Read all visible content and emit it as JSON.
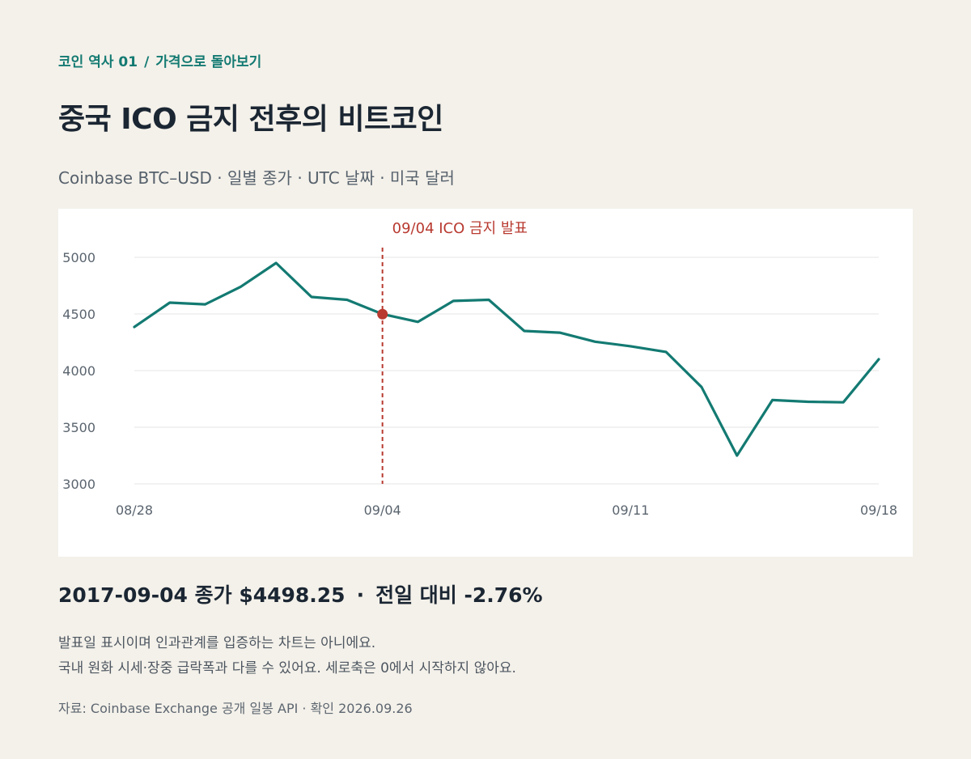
{
  "header": {
    "eyebrow_series": "코인 역사 01",
    "eyebrow_sep": "/",
    "eyebrow_topic": "가격으로 돌아보기",
    "title": "중국 ICO 금지 전후의 비트코인",
    "subtitle": "Coinbase BTC–USD · 일별 종가 · UTC 날짜 · 미국 달러"
  },
  "colors": {
    "accent": "#137a72",
    "line": "#137a72",
    "annotation": "#b83a30",
    "grid": "#e4e4e4",
    "background": "#f4f1ea",
    "card": "#ffffff"
  },
  "chart_data": {
    "type": "line",
    "title": "",
    "xlabel": "",
    "ylabel": "",
    "ylim": [
      3000,
      5000
    ],
    "yticks": [
      3000,
      3500,
      4000,
      4500,
      5000
    ],
    "ytick_labels": [
      "3000",
      "3500",
      "4000",
      "4500",
      "5000"
    ],
    "xticks": [
      "2017-08-28",
      "2017-09-04",
      "2017-09-11",
      "2017-09-18"
    ],
    "xtick_labels": [
      "08/28",
      "09/04",
      "09/11",
      "09/18"
    ],
    "grid": true,
    "series": [
      {
        "x": [
          "2017-08-28",
          "2017-08-29",
          "2017-08-30",
          "2017-08-31",
          "2017-09-01",
          "2017-09-02",
          "2017-09-03",
          "2017-09-04",
          "2017-09-05",
          "2017-09-06",
          "2017-09-07",
          "2017-09-08",
          "2017-09-09",
          "2017-09-10",
          "2017-09-11",
          "2017-09-12",
          "2017-09-13",
          "2017-09-14",
          "2017-09-15",
          "2017-09-16",
          "2017-09-17",
          "2017-09-18"
        ],
        "values": [
          4385,
          4600,
          4585,
          4740,
          4950,
          4650,
          4625,
          4498.25,
          4430,
          4615,
          4625,
          4350,
          4335,
          4255,
          4215,
          4165,
          3855,
          3250,
          3740,
          3725,
          3720,
          4100
        ]
      }
    ],
    "annotations": [
      {
        "x": "2017-09-04",
        "y": 4498.25,
        "label": "09/04 ICO 금지 발표"
      }
    ]
  },
  "summary": {
    "close_text": "2017-09-04 종가 $4498.25",
    "dot": "·",
    "change_text": "전일 대비 -2.76%"
  },
  "notes": {
    "line1": "발표일 표시이며 인과관계를 입증하는 차트는 아니에요.",
    "line2": "국내 원화 시세·장중 급락폭과 다를 수 있어요. 세로축은 0에서 시작하지 않아요."
  },
  "source": "자료: Coinbase Exchange 공개 일봉 API · 확인 2026.09.26"
}
